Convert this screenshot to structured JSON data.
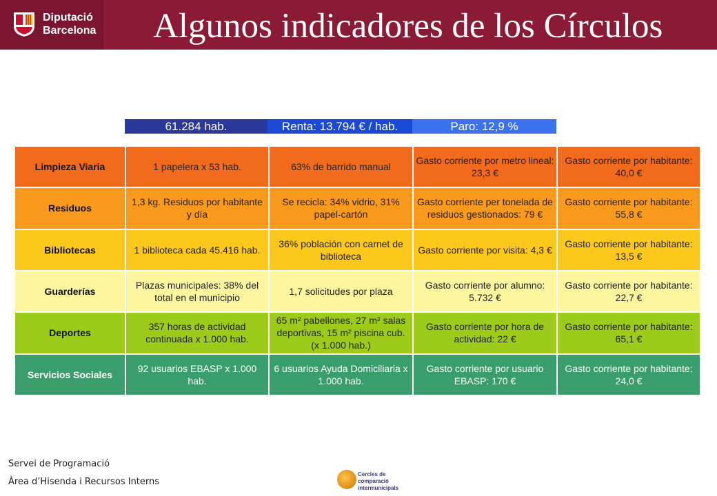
{
  "header": {
    "logo_text_line1": "Diputació",
    "logo_text_line2": "Barcelona",
    "title": "Algunos indicadores de los Círculos"
  },
  "bands": [
    "61.284 hab.",
    "Renta: 13.794 € / hab.",
    "Paro: 12,9 %"
  ],
  "table": {
    "rows": [
      {
        "label": "Limpieza Viaria",
        "cells": [
          "1 papelera x 53 hab.",
          "63% de barrido manual",
          "Gasto corriente por metro lineal: 23,3 €",
          "Gasto corriente por habitante: 40,0 €"
        ]
      },
      {
        "label": "Residuos",
        "cells": [
          "1,3 kg. Residuos por habitante y día",
          "Se recicla: 34% vidrio, 31% papel-cartón",
          "Gasto corriente per tonelada de residuos gestionados: 79 €",
          "Gasto corriente por habitante: 55,8 €"
        ]
      },
      {
        "label": "Bibliotecas",
        "cells": [
          "1 biblioteca cada 45.416 hab.",
          "36% población con carnet de biblioteca",
          "Gasto corriente por visita: 4,3 €",
          "Gasto corriente por habitante: 13,5 €"
        ]
      },
      {
        "label": "Guarderías",
        "cells": [
          "Plazas municipales: 38% del total en el municipio",
          "1,7 solicitudes por plaza",
          "Gasto corriente por alumno: 5.732 €",
          "Gasto corriente por habitante: 22,7 €"
        ]
      },
      {
        "label": "Deportes",
        "cells": [
          "357 horas de actividad continuada x 1.000 hab.",
          "65 m² pabellones, 27 m² salas deportivas, 15 m² piscina cub. (x 1.000 hab.)",
          "Gasto corriente por hora de actividad: 22 €",
          "Gasto corriente por habitante: 65,1 €"
        ]
      },
      {
        "label": "Servicios Sociales",
        "cells": [
          "92 usuarios EBASP x 1.000 hab.",
          "6 usuarios Ayuda Domiciliaria x 1.000 hab.",
          "Gasto corriente por usuario EBASP: 170 €",
          "Gasto corriente por habitante: 24,0 €"
        ]
      }
    ]
  },
  "footer": {
    "line1": "Servei de Programació",
    "line2": "Àrea d’Hisenda i Recursos Interns",
    "brand_line1": "Cercles de comparació",
    "brand_line2": "intermunicipals"
  },
  "colors": {
    "header": "#8b1a36",
    "row_colors": [
      "#f26b1d",
      "#fa9a1c",
      "#fcc81c",
      "#fdf69e",
      "#9ccb1a",
      "#3a9e6c"
    ]
  }
}
